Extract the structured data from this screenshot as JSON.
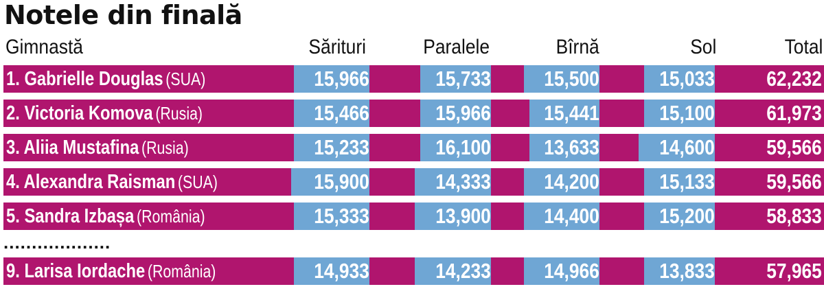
{
  "title": "Notele din finală",
  "colors": {
    "row_bg": "#b0156e",
    "cell_bg": "#6fa6d4",
    "text": "#ffffff"
  },
  "chart_data": {
    "type": "table",
    "title": "Notele din finală",
    "columns": [
      "Gimnastă",
      "Sărituri",
      "Paralele",
      "Bîrnă",
      "Sol",
      "Total"
    ],
    "rows": [
      {
        "name": "1. Gabrielle Douglas",
        "country": "(SUA)",
        "values": [
          "15,966",
          "15,733",
          "15,500",
          "15,033",
          "62,232"
        ]
      },
      {
        "name": "2. Victoria Komova",
        "country": "(Rusia)",
        "values": [
          "15,466",
          "15,966",
          "15,441",
          "15,100",
          "61,973"
        ]
      },
      {
        "name": "3. Aliia Mustafina",
        "country": "(Rusia)",
        "values": [
          "15,233",
          "16,100",
          "13,633",
          "14,600",
          "59,566"
        ]
      },
      {
        "name": "4. Alexandra Raisman",
        "country": "(SUA)",
        "values": [
          "15,900",
          "14,333",
          "14,200",
          "15,133",
          "59,566"
        ]
      },
      {
        "name": "5. Sandra Izbașa",
        "country": "(România)",
        "values": [
          "15,333",
          "13,900",
          "14,400",
          "15,200",
          "58,833"
        ]
      },
      {
        "separator": "..................."
      },
      {
        "name": "9. Larisa Iordache",
        "country": "(România)",
        "values": [
          "14,933",
          "14,233",
          "14,966",
          "13,833",
          "57,965"
        ]
      }
    ]
  }
}
